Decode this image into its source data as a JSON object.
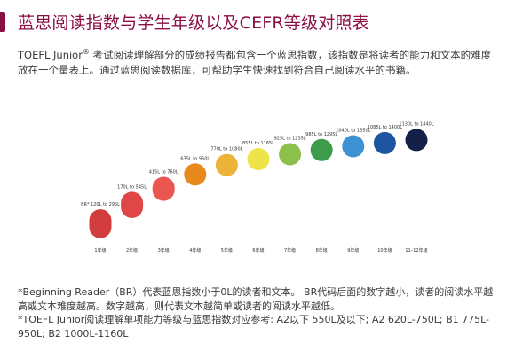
{
  "title": "蓝思阅读指数与学生年级以及CEFR等级对照表",
  "intro": {
    "brand": "TOEFL Junior",
    "reg_mark": "®",
    "text": " 考试阅读理解部分的成绩报告都包含一个蓝思指数，该指数是将读者的能力和文本的难度放在一个量表上。通过蓝思阅读数据库，可帮助学生快速找到符合自己阅读水平的书籍。"
  },
  "chart_data": {
    "type": "bar",
    "title": "",
    "xlabel": "",
    "ylabel": "",
    "categories": [
      "1年级",
      "2年级",
      "3年级",
      "4年级",
      "5年级",
      "6年级",
      "7年级",
      "8年级",
      "9年级",
      "10年级",
      "11–12年级"
    ],
    "series": [
      {
        "low": [
          -120,
          170,
          415,
          635,
          770,
          855,
          925,
          985,
          1040,
          1085,
          1130
        ],
        "high": [
          295,
          545,
          760,
          950,
          1080,
          1165,
          1235,
          1295,
          1350,
          1400,
          1440
        ]
      }
    ],
    "data_labels": [
      "BR* 120L to 295L",
      "170L to 545L",
      "415L to 760L",
      "635L to 950L",
      "770L to 1080L",
      "855L to 1165L",
      "925L to 1235L",
      "985L to 1295L",
      "1040L to 1350L",
      "1085L to 1400L",
      "1130L to 1440L"
    ],
    "colors": [
      "#d23c3c",
      "#e04646",
      "#ea5750",
      "#e8891e",
      "#edb23a",
      "#eee449",
      "#8cc04a",
      "#3c9c4b",
      "#3c92d2",
      "#1e55a0",
      "#152049"
    ],
    "ylim": [
      -200,
      1440
    ],
    "grid": false,
    "legend": "none"
  },
  "footnote": {
    "line1": "*Beginning Reader（BR）代表蓝思指数小于0L的读者和文本。 BR代码后面的数字越小，读者的阅读水平越高或文本难度越高。数字越高，则代表文本越简单或读者的阅读水平越低。",
    "line2": "*TOEFL Junior阅读理解单项能力等级与蓝思指数对应参考: A2以下 550L及以下; A2 620L-750L; B1 775L-950L; B2 1000L-1160L"
  }
}
